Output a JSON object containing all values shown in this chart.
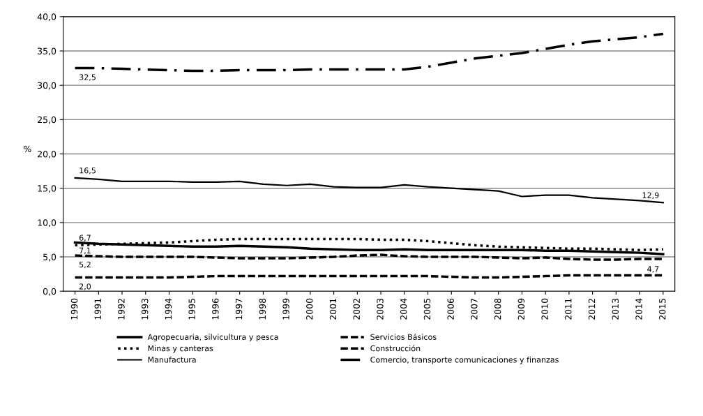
{
  "chart_data": {
    "type": "line",
    "ylabel": "%",
    "categories": [
      "1990",
      "1991",
      "1992",
      "1993",
      "1994",
      "1995",
      "1996",
      "1997",
      "1998",
      "1999",
      "2000",
      "2001",
      "2002",
      "2003",
      "2004",
      "2005",
      "2006",
      "2007",
      "2008",
      "2009",
      "2010",
      "2011",
      "2012",
      "2013",
      "2014",
      "2015"
    ],
    "ylim": [
      0,
      40
    ],
    "yticks": [
      {
        "value": 0,
        "label": "0,0"
      },
      {
        "value": 5,
        "label": "5,0"
      },
      {
        "value": 10,
        "label": "10,0"
      },
      {
        "value": 15,
        "label": "15,0"
      },
      {
        "value": 20,
        "label": "20,0"
      },
      {
        "value": 25,
        "label": "25,0"
      },
      {
        "value": 30,
        "label": "30,0"
      },
      {
        "value": 35,
        "label": "35,0"
      },
      {
        "value": 40,
        "label": "40,0"
      }
    ],
    "grid": "y",
    "legend": "bottom",
    "marker": "none",
    "series": [
      {
        "name": "Agropecuaria, silvicultura y pesca",
        "color": "#000000",
        "line_style": "solid",
        "values": [
          7.1,
          6.9,
          6.8,
          6.7,
          6.6,
          6.5,
          6.5,
          6.6,
          6.5,
          6.4,
          6.2,
          6.1,
          6.0,
          6.0,
          6.1,
          6.0,
          6.0,
          6.0,
          6.0,
          6.0,
          5.9,
          5.9,
          5.8,
          5.7,
          5.6,
          5.4
        ],
        "value_labels": [
          "7,1",
          null,
          null,
          null,
          null,
          null,
          null,
          null,
          null,
          null,
          null,
          null,
          null,
          null,
          null,
          null,
          null,
          null,
          null,
          null,
          null,
          null,
          null,
          null,
          null,
          null
        ]
      },
      {
        "name": "Minas y canteras",
        "color": "#000000",
        "line_style": "dotted",
        "values": [
          6.7,
          6.8,
          6.9,
          7.0,
          7.1,
          7.3,
          7.5,
          7.6,
          7.6,
          7.6,
          7.6,
          7.6,
          7.6,
          7.5,
          7.5,
          7.3,
          7.0,
          6.7,
          6.5,
          6.4,
          6.3,
          6.2,
          6.2,
          6.1,
          6.0,
          6.1
        ],
        "value_labels": [
          "6,7",
          null,
          null,
          null,
          null,
          null,
          null,
          null,
          null,
          null,
          null,
          null,
          null,
          null,
          null,
          null,
          null,
          null,
          null,
          null,
          null,
          null,
          null,
          null,
          null,
          null
        ]
      },
      {
        "name": "Manufactura",
        "color": "#000000",
        "line_style": "solid",
        "values": [
          16.5,
          16.3,
          16.0,
          16.0,
          16.0,
          15.9,
          15.9,
          16.0,
          15.6,
          15.4,
          15.6,
          15.2,
          15.1,
          15.1,
          15.5,
          15.2,
          15.0,
          14.8,
          14.6,
          13.8,
          14.0,
          14.0,
          13.6,
          13.4,
          13.2,
          12.9
        ],
        "value_labels": [
          "16,5",
          null,
          null,
          null,
          null,
          null,
          null,
          null,
          null,
          null,
          null,
          null,
          null,
          null,
          null,
          null,
          null,
          null,
          null,
          null,
          null,
          null,
          null,
          null,
          null,
          "12,9"
        ]
      },
      {
        "name": "Servicios Básicos",
        "color": "#000000",
        "line_style": "dashed",
        "values": [
          2.0,
          2.0,
          2.0,
          2.0,
          2.0,
          2.1,
          2.2,
          2.2,
          2.2,
          2.2,
          2.2,
          2.2,
          2.2,
          2.2,
          2.2,
          2.2,
          2.1,
          2.0,
          2.0,
          2.1,
          2.2,
          2.3,
          2.3,
          2.3,
          2.3,
          2.3
        ],
        "value_labels": [
          "2,0",
          null,
          null,
          null,
          null,
          null,
          null,
          null,
          null,
          null,
          null,
          null,
          null,
          null,
          null,
          null,
          null,
          null,
          null,
          null,
          null,
          null,
          null,
          null,
          null,
          null
        ]
      },
      {
        "name": "Construcción",
        "color": "#000000",
        "line_style": "dashed",
        "values": [
          5.2,
          5.1,
          5.0,
          5.0,
          5.0,
          5.0,
          4.9,
          4.8,
          4.8,
          4.8,
          4.9,
          5.0,
          5.2,
          5.3,
          5.1,
          5.0,
          5.0,
          5.0,
          4.9,
          4.8,
          4.9,
          4.7,
          4.6,
          4.6,
          4.7,
          4.7
        ],
        "value_labels": [
          "5,2",
          null,
          null,
          null,
          null,
          null,
          null,
          null,
          null,
          null,
          null,
          null,
          null,
          null,
          null,
          null,
          null,
          null,
          null,
          null,
          null,
          null,
          null,
          null,
          null,
          "4,7"
        ]
      },
      {
        "name": "Comercio, transporte comunicaciones y finanzas",
        "color": "#000000",
        "line_style": "dashdot",
        "values": [
          32.5,
          32.5,
          32.4,
          32.3,
          32.2,
          32.1,
          32.1,
          32.2,
          32.2,
          32.2,
          32.3,
          32.3,
          32.3,
          32.3,
          32.3,
          32.7,
          33.3,
          33.9,
          34.3,
          34.7,
          35.3,
          35.9,
          36.4,
          36.7,
          37.0,
          37.5
        ],
        "value_labels": [
          "32,5",
          null,
          null,
          null,
          null,
          null,
          null,
          null,
          null,
          null,
          null,
          null,
          null,
          null,
          null,
          null,
          null,
          null,
          null,
          null,
          null,
          null,
          null,
          null,
          null,
          null
        ]
      }
    ]
  }
}
